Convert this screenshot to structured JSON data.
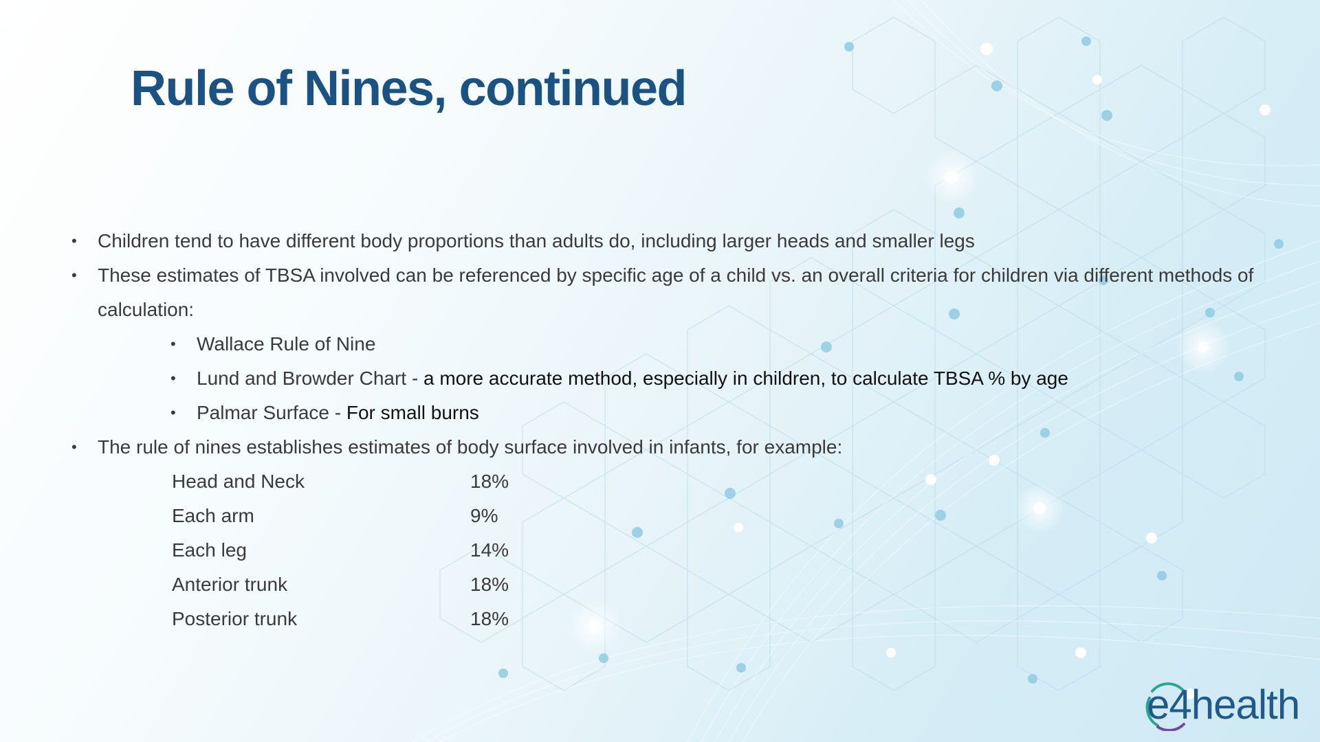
{
  "slide": {
    "title": "Rule of Nines, continued",
    "bullets": [
      "Children tend to have different body proportions than adults do, including larger heads and smaller legs",
      "These estimates of TBSA involved can be referenced by specific age of a child vs. an overall criteria for children via different methods of calculation:"
    ],
    "sub_bullets": [
      {
        "label": "Wallace Rule of Nine",
        "detail": ""
      },
      {
        "label": "Lund and Browder Chart - ",
        "detail": "a more accurate method, especially in children, to calculate TBSA % by age"
      },
      {
        "label": "Palmar Surface - ",
        "detail": "For small burns"
      }
    ],
    "bullet3": "The rule of nines establishes estimates of body surface involved in infants, for example:",
    "infant_table": [
      {
        "part": "Head and Neck",
        "value": "18%"
      },
      {
        "part": "Each arm",
        "value": "9%"
      },
      {
        "part": "Each leg",
        "value": "14%"
      },
      {
        "part": "Anterior trunk",
        "value": "18%"
      },
      {
        "part": "Posterior trunk",
        "value": "18%"
      }
    ]
  },
  "logo": {
    "text": "e4health",
    "icon": "e4health-logo-ring-icon"
  },
  "colors": {
    "title": "#1a5283",
    "body_text": "#3a3a3a",
    "emphasis_text": "#111111",
    "logo_blue": "#1f5a8a",
    "logo_green": "#2aa58f",
    "logo_purple": "#6d4c9f"
  }
}
